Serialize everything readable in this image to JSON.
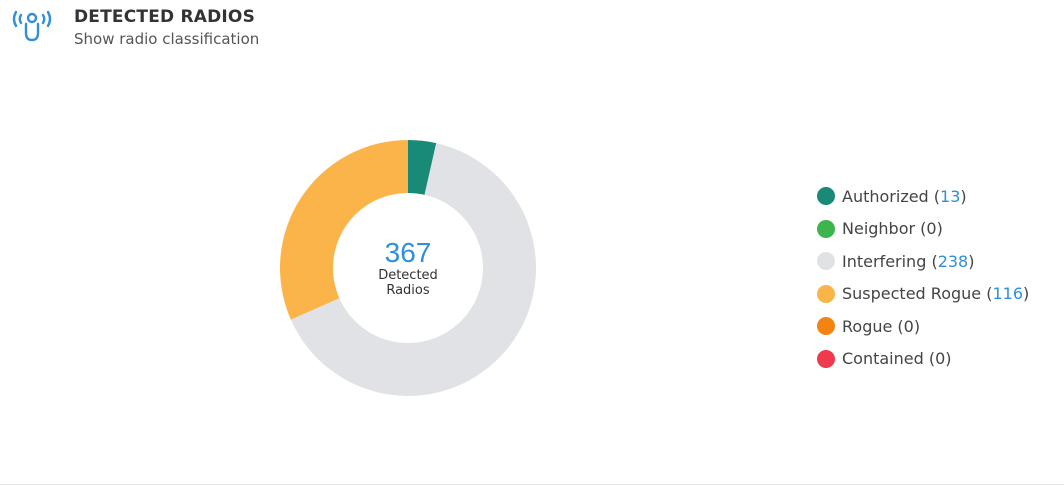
{
  "widget": {
    "title": "DETECTED RADIOS",
    "subtitle": "Show radio classification",
    "icon": "radio-signal-icon",
    "icon_color": "#2f8fd8"
  },
  "center": {
    "total": "367",
    "label_line1": "Detected",
    "label_line2": "Radios"
  },
  "legend": {
    "items": [
      {
        "label": "Authorized",
        "count": "13",
        "color": "#1a8a78"
      },
      {
        "label": "Neighbor",
        "count": "0",
        "color": "#3cb54a"
      },
      {
        "label": "Interfering",
        "count": "238",
        "color": "#e1e2e5"
      },
      {
        "label": "Suspected Rogue",
        "count": "116",
        "color": "#fbb44a"
      },
      {
        "label": "Rogue",
        "count": "0",
        "color": "#f48412"
      },
      {
        "label": "Contained",
        "count": "0",
        "color": "#ef3a4e"
      }
    ]
  },
  "chart_data": {
    "type": "pie",
    "categories": [
      "Authorized",
      "Neighbor",
      "Interfering",
      "Suspected Rogue",
      "Rogue",
      "Contained"
    ],
    "values": [
      13,
      0,
      238,
      116,
      0,
      0
    ],
    "colors": [
      "#1a8a78",
      "#3cb54a",
      "#e1e2e5",
      "#fbb44a",
      "#f48412",
      "#ef3a4e"
    ],
    "donut": true,
    "total": 367,
    "legend_position": "right"
  }
}
